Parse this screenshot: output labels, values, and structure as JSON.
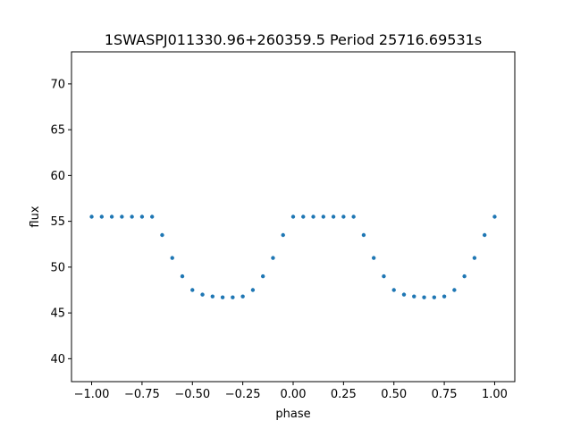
{
  "chart_data": {
    "type": "scatter",
    "title": "1SWASPJ011330.96+260359.5 Period 25716.69531s",
    "xlabel": "phase",
    "ylabel": "flux",
    "xlim": [
      -1.1,
      1.1
    ],
    "ylim": [
      37.5,
      73.5
    ],
    "xticks": [
      -1.0,
      -0.75,
      -0.5,
      -0.25,
      0.0,
      0.25,
      0.5,
      0.75,
      1.0
    ],
    "xtick_labels": [
      "−1.00",
      "−0.75",
      "−0.50",
      "−0.25",
      "0.00",
      "0.25",
      "0.50",
      "0.75",
      "1.00"
    ],
    "yticks": [
      40,
      45,
      50,
      55,
      60,
      65,
      70
    ],
    "ytick_labels": [
      "40",
      "45",
      "50",
      "55",
      "60",
      "65",
      "70"
    ],
    "grid": false,
    "marker_color": "#1f77b4",
    "series": [
      {
        "x": [
          -1.0,
          -0.95,
          -0.9,
          -0.85,
          -0.8,
          -0.75,
          -0.7,
          -0.65,
          -0.6,
          -0.55,
          -0.5,
          -0.45,
          -0.4,
          -0.35,
          -0.3,
          -0.25,
          -0.2,
          -0.15,
          -0.1,
          -0.05,
          0.0,
          0.05,
          0.1,
          0.15,
          0.2,
          0.25,
          0.3,
          0.35,
          0.4,
          0.45,
          0.5,
          0.55,
          0.6,
          0.65,
          0.7,
          0.75,
          0.8,
          0.85,
          0.9,
          0.95,
          1.0
        ],
        "y": [
          55.5,
          55.5,
          55.5,
          55.5,
          55.5,
          55.5,
          55.5,
          53.5,
          51.0,
          49.0,
          47.5,
          47.0,
          46.8,
          46.7,
          46.7,
          46.8,
          47.5,
          49.0,
          51.0,
          53.5,
          55.5,
          55.5,
          55.5,
          55.5,
          55.5,
          55.5,
          55.5,
          53.5,
          51.0,
          49.0,
          47.5,
          47.0,
          46.8,
          46.7,
          46.7,
          46.8,
          47.5,
          49.0,
          51.0,
          53.5,
          55.5
        ]
      }
    ]
  }
}
